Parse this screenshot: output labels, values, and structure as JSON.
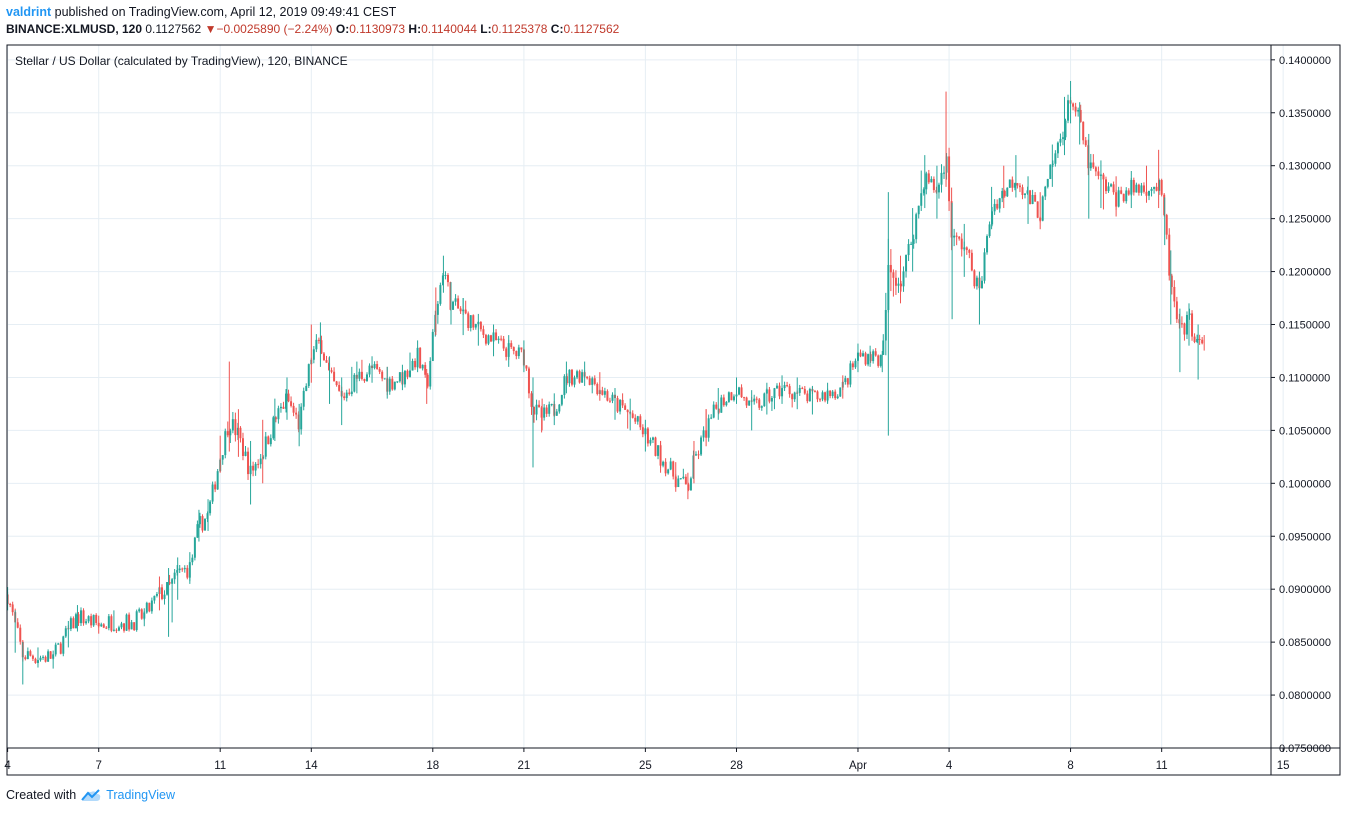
{
  "header": {
    "author": "valdrint",
    "published_text": "published on TradingView.com, April 12, 2019 09:49:41 CEST"
  },
  "ohlc_bar": {
    "symbol": "BINANCE:XLMUSD, 120",
    "last": "0.1127562",
    "change": "−0.0025890 (−2.24%)",
    "o_label": "O:",
    "o": "0.1130973",
    "h_label": "H:",
    "h": "0.1140044",
    "l_label": "L:",
    "l": "0.1125378",
    "c_label": "C:",
    "c": "0.1127562"
  },
  "footer": {
    "created_with": "Created with",
    "brand": "TradingView",
    "logo_icon": "tradingview-cloud-icon"
  },
  "colors": {
    "up": "#26a69a",
    "down": "#ef5350",
    "grid": "#e6eef4",
    "axis": "#131722",
    "accent": "#2196f3"
  },
  "chart_data": {
    "type": "candlestick",
    "title": "Stellar / US Dollar (calculated by TradingView), 120, BINANCE",
    "interval": "120",
    "x_tick_labels": [
      "4",
      "7",
      "11",
      "14",
      "18",
      "21",
      "25",
      "28",
      "Apr",
      "4",
      "8",
      "11",
      "15"
    ],
    "x_tick_days": [
      4,
      7,
      11,
      14,
      18,
      21,
      25,
      28,
      32,
      35,
      39,
      42,
      46
    ],
    "x_range_days": [
      3.98,
      45.6
    ],
    "y_tick_labels": [
      "0.0750000",
      "0.0800000",
      "0.0850000",
      "0.0900000",
      "0.0950000",
      "0.1000000",
      "0.1050000",
      "0.1100000",
      "0.1150000",
      "0.1200000",
      "0.1250000",
      "0.1300000",
      "0.1350000",
      "0.1400000"
    ],
    "ylim": [
      0.075,
      0.1414
    ],
    "last_price": 0.1127562,
    "grid": true,
    "price_path": [
      {
        "day": 4.0,
        "price": 0.0895,
        "hi": 0.0902,
        "lo": 0.088
      },
      {
        "day": 4.25,
        "price": 0.0865,
        "hi": 0.088,
        "lo": 0.084
      },
      {
        "day": 4.5,
        "price": 0.0838,
        "hi": 0.085,
        "lo": 0.081
      },
      {
        "day": 5.0,
        "price": 0.0836,
        "hi": 0.0845,
        "lo": 0.0826
      },
      {
        "day": 5.5,
        "price": 0.0836,
        "hi": 0.0842,
        "lo": 0.0825
      },
      {
        "day": 6.0,
        "price": 0.086,
        "hi": 0.087,
        "lo": 0.0845
      },
      {
        "day": 6.3,
        "price": 0.0875,
        "hi": 0.0885,
        "lo": 0.086
      },
      {
        "day": 7.0,
        "price": 0.0866,
        "hi": 0.0875,
        "lo": 0.0858
      },
      {
        "day": 7.5,
        "price": 0.087,
        "hi": 0.088,
        "lo": 0.086
      },
      {
        "day": 8.0,
        "price": 0.0868,
        "hi": 0.0878,
        "lo": 0.086
      },
      {
        "day": 8.5,
        "price": 0.0875,
        "hi": 0.0882,
        "lo": 0.0865
      },
      {
        "day": 9.0,
        "price": 0.0895,
        "hi": 0.0912,
        "lo": 0.088
      },
      {
        "day": 9.3,
        "price": 0.09,
        "hi": 0.092,
        "lo": 0.0855
      },
      {
        "day": 9.6,
        "price": 0.0915,
        "hi": 0.093,
        "lo": 0.089
      },
      {
        "day": 10.0,
        "price": 0.092,
        "hi": 0.0935,
        "lo": 0.0905
      },
      {
        "day": 10.3,
        "price": 0.096,
        "hi": 0.0975,
        "lo": 0.0945
      },
      {
        "day": 10.6,
        "price": 0.097,
        "hi": 0.0985,
        "lo": 0.0955
      },
      {
        "day": 11.0,
        "price": 0.1025,
        "hi": 0.1045,
        "lo": 0.101
      },
      {
        "day": 11.3,
        "price": 0.106,
        "hi": 0.1115,
        "lo": 0.103
      },
      {
        "day": 11.6,
        "price": 0.1045,
        "hi": 0.107,
        "lo": 0.1025
      },
      {
        "day": 12.0,
        "price": 0.101,
        "hi": 0.104,
        "lo": 0.098
      },
      {
        "day": 12.4,
        "price": 0.103,
        "hi": 0.106,
        "lo": 0.1
      },
      {
        "day": 12.8,
        "price": 0.106,
        "hi": 0.108,
        "lo": 0.104
      },
      {
        "day": 13.2,
        "price": 0.108,
        "hi": 0.11,
        "lo": 0.106
      },
      {
        "day": 13.6,
        "price": 0.1055,
        "hi": 0.1075,
        "lo": 0.1035
      },
      {
        "day": 14.0,
        "price": 0.112,
        "hi": 0.115,
        "lo": 0.1095
      },
      {
        "day": 14.3,
        "price": 0.1135,
        "hi": 0.1152,
        "lo": 0.111
      },
      {
        "day": 14.6,
        "price": 0.11,
        "hi": 0.112,
        "lo": 0.1075
      },
      {
        "day": 15.0,
        "price": 0.108,
        "hi": 0.11,
        "lo": 0.1055
      },
      {
        "day": 15.5,
        "price": 0.11,
        "hi": 0.1115,
        "lo": 0.1085
      },
      {
        "day": 16.0,
        "price": 0.1108,
        "hi": 0.112,
        "lo": 0.1095
      },
      {
        "day": 16.5,
        "price": 0.1095,
        "hi": 0.111,
        "lo": 0.108
      },
      {
        "day": 17.0,
        "price": 0.11,
        "hi": 0.1112,
        "lo": 0.1088
      },
      {
        "day": 17.5,
        "price": 0.112,
        "hi": 0.1135,
        "lo": 0.1105
      },
      {
        "day": 17.8,
        "price": 0.109,
        "hi": 0.1108,
        "lo": 0.1075
      },
      {
        "day": 18.1,
        "price": 0.116,
        "hi": 0.1185,
        "lo": 0.114
      },
      {
        "day": 18.35,
        "price": 0.1205,
        "hi": 0.1215,
        "lo": 0.118
      },
      {
        "day": 18.6,
        "price": 0.117,
        "hi": 0.119,
        "lo": 0.115
      },
      {
        "day": 19.0,
        "price": 0.116,
        "hi": 0.1175,
        "lo": 0.114
      },
      {
        "day": 19.5,
        "price": 0.1145,
        "hi": 0.116,
        "lo": 0.113
      },
      {
        "day": 20.0,
        "price": 0.1135,
        "hi": 0.115,
        "lo": 0.112
      },
      {
        "day": 20.5,
        "price": 0.1125,
        "hi": 0.114,
        "lo": 0.111
      },
      {
        "day": 21.0,
        "price": 0.112,
        "hi": 0.1135,
        "lo": 0.1105
      },
      {
        "day": 21.3,
        "price": 0.107,
        "hi": 0.11,
        "lo": 0.1015
      },
      {
        "day": 21.6,
        "price": 0.1062,
        "hi": 0.108,
        "lo": 0.105
      },
      {
        "day": 22.0,
        "price": 0.107,
        "hi": 0.1085,
        "lo": 0.1055
      },
      {
        "day": 22.4,
        "price": 0.11,
        "hi": 0.1115,
        "lo": 0.1085
      },
      {
        "day": 23.0,
        "price": 0.1105,
        "hi": 0.1115,
        "lo": 0.1092
      },
      {
        "day": 23.5,
        "price": 0.109,
        "hi": 0.1105,
        "lo": 0.1078
      },
      {
        "day": 24.0,
        "price": 0.1075,
        "hi": 0.109,
        "lo": 0.106
      },
      {
        "day": 24.5,
        "price": 0.1065,
        "hi": 0.108,
        "lo": 0.105
      },
      {
        "day": 25.0,
        "price": 0.1045,
        "hi": 0.106,
        "lo": 0.103
      },
      {
        "day": 25.5,
        "price": 0.1025,
        "hi": 0.104,
        "lo": 0.101
      },
      {
        "day": 26.0,
        "price": 0.1005,
        "hi": 0.102,
        "lo": 0.0992
      },
      {
        "day": 26.4,
        "price": 0.0995,
        "hi": 0.101,
        "lo": 0.0985
      },
      {
        "day": 26.6,
        "price": 0.102,
        "hi": 0.104,
        "lo": 0.1
      },
      {
        "day": 27.0,
        "price": 0.105,
        "hi": 0.107,
        "lo": 0.1035
      },
      {
        "day": 27.4,
        "price": 0.1075,
        "hi": 0.109,
        "lo": 0.106
      },
      {
        "day": 28.0,
        "price": 0.109,
        "hi": 0.11,
        "lo": 0.1075
      },
      {
        "day": 28.5,
        "price": 0.107,
        "hi": 0.1088,
        "lo": 0.105
      },
      {
        "day": 29.0,
        "price": 0.108,
        "hi": 0.1095,
        "lo": 0.1065
      },
      {
        "day": 29.5,
        "price": 0.109,
        "hi": 0.1102,
        "lo": 0.1075
      },
      {
        "day": 30.0,
        "price": 0.1085,
        "hi": 0.11,
        "lo": 0.107
      },
      {
        "day": 30.5,
        "price": 0.108,
        "hi": 0.1092,
        "lo": 0.1065
      },
      {
        "day": 31.0,
        "price": 0.1085,
        "hi": 0.1095,
        "lo": 0.1075
      },
      {
        "day": 31.5,
        "price": 0.109,
        "hi": 0.1102,
        "lo": 0.108
      },
      {
        "day": 32.0,
        "price": 0.112,
        "hi": 0.1132,
        "lo": 0.1105
      },
      {
        "day": 32.4,
        "price": 0.1122,
        "hi": 0.113,
        "lo": 0.111
      },
      {
        "day": 32.8,
        "price": 0.1115,
        "hi": 0.1125,
        "lo": 0.1105
      },
      {
        "day": 33.0,
        "price": 0.12,
        "hi": 0.1275,
        "lo": 0.1045
      },
      {
        "day": 33.4,
        "price": 0.119,
        "hi": 0.1215,
        "lo": 0.117
      },
      {
        "day": 33.8,
        "price": 0.1235,
        "hi": 0.126,
        "lo": 0.12
      },
      {
        "day": 34.2,
        "price": 0.129,
        "hi": 0.131,
        "lo": 0.126
      },
      {
        "day": 34.6,
        "price": 0.1275,
        "hi": 0.13,
        "lo": 0.125
      },
      {
        "day": 34.9,
        "price": 0.131,
        "hi": 0.137,
        "lo": 0.128
      },
      {
        "day": 35.1,
        "price": 0.123,
        "hi": 0.1265,
        "lo": 0.1155
      },
      {
        "day": 35.5,
        "price": 0.1225,
        "hi": 0.1245,
        "lo": 0.1195
      },
      {
        "day": 36.0,
        "price": 0.118,
        "hi": 0.12,
        "lo": 0.115
      },
      {
        "day": 36.4,
        "price": 0.126,
        "hi": 0.128,
        "lo": 0.124
      },
      {
        "day": 36.8,
        "price": 0.1275,
        "hi": 0.13,
        "lo": 0.126
      },
      {
        "day": 37.2,
        "price": 0.129,
        "hi": 0.131,
        "lo": 0.127
      },
      {
        "day": 37.6,
        "price": 0.127,
        "hi": 0.129,
        "lo": 0.1245
      },
      {
        "day": 38.0,
        "price": 0.1255,
        "hi": 0.1275,
        "lo": 0.124
      },
      {
        "day": 38.4,
        "price": 0.13,
        "hi": 0.132,
        "lo": 0.128
      },
      {
        "day": 38.8,
        "price": 0.134,
        "hi": 0.1365,
        "lo": 0.131
      },
      {
        "day": 39.0,
        "price": 0.1365,
        "hi": 0.138,
        "lo": 0.134
      },
      {
        "day": 39.3,
        "price": 0.134,
        "hi": 0.136,
        "lo": 0.132
      },
      {
        "day": 39.6,
        "price": 0.13,
        "hi": 0.133,
        "lo": 0.125
      },
      {
        "day": 40.0,
        "price": 0.1285,
        "hi": 0.1305,
        "lo": 0.126
      },
      {
        "day": 40.5,
        "price": 0.127,
        "hi": 0.129,
        "lo": 0.1252
      },
      {
        "day": 41.0,
        "price": 0.1278,
        "hi": 0.1295,
        "lo": 0.126
      },
      {
        "day": 41.5,
        "price": 0.128,
        "hi": 0.13,
        "lo": 0.1265
      },
      {
        "day": 41.9,
        "price": 0.128,
        "hi": 0.1315,
        "lo": 0.126
      },
      {
        "day": 42.1,
        "price": 0.125,
        "hi": 0.127,
        "lo": 0.1225
      },
      {
        "day": 42.3,
        "price": 0.1185,
        "hi": 0.122,
        "lo": 0.115
      },
      {
        "day": 42.6,
        "price": 0.114,
        "hi": 0.1165,
        "lo": 0.1105
      },
      {
        "day": 42.9,
        "price": 0.1155,
        "hi": 0.117,
        "lo": 0.113
      },
      {
        "day": 43.2,
        "price": 0.113,
        "hi": 0.115,
        "lo": 0.1098
      },
      {
        "day": 43.4,
        "price": 0.1127562,
        "hi": 0.1140044,
        "lo": 0.1125378
      }
    ]
  }
}
